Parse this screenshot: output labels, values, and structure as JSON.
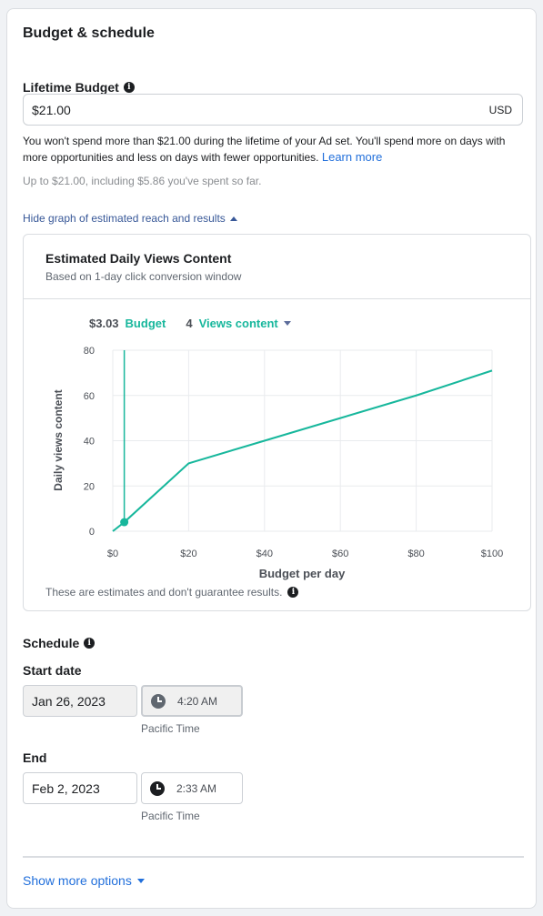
{
  "section_title": "Budget & schedule",
  "lifetime_budget": {
    "label": "Lifetime Budget",
    "value": "$21.00",
    "currency": "USD",
    "description": "You won't spend more than $21.00 during the lifetime of your Ad set. You'll spend more on days with more opportunities and less on days with fewer opportunities.",
    "learn_more": "Learn more",
    "spent_note": "Up to $21.00, including $5.86 you've spent so far."
  },
  "graph_toggle": "Hide graph of estimated reach and results",
  "graph": {
    "title": "Estimated Daily Views Content",
    "subtitle": "Based on 1-day click conversion window",
    "budget_value": "$3.03",
    "budget_label": "Budget",
    "result_value": "4",
    "result_label": "Views content",
    "footnote": "These are estimates and don't guarantee results."
  },
  "chart_data": {
    "type": "line",
    "xlabel": "Budget per day",
    "ylabel": "Daily views content",
    "xlim": [
      0,
      100
    ],
    "ylim": [
      0,
      80
    ],
    "x_ticks": [
      "$0",
      "$20",
      "$40",
      "$60",
      "$80",
      "$100"
    ],
    "y_ticks": [
      "0",
      "20",
      "40",
      "60",
      "80"
    ],
    "grid": true,
    "line_color": "#17b79c",
    "series": [
      {
        "x": [
          0,
          3.03,
          20,
          40,
          60,
          80,
          100
        ],
        "y": [
          0,
          4,
          30,
          40,
          50,
          60,
          71
        ]
      }
    ],
    "marker": {
      "x": 3.03,
      "y": 4
    }
  },
  "schedule": {
    "label": "Schedule",
    "start_label": "Start date",
    "start_date": "Jan 26, 2023",
    "start_time": "4:20 AM",
    "end_label": "End",
    "end_date": "Feb 2, 2023",
    "end_time": "2:33 AM",
    "timezone": "Pacific Time"
  },
  "show_more": "Show more options"
}
